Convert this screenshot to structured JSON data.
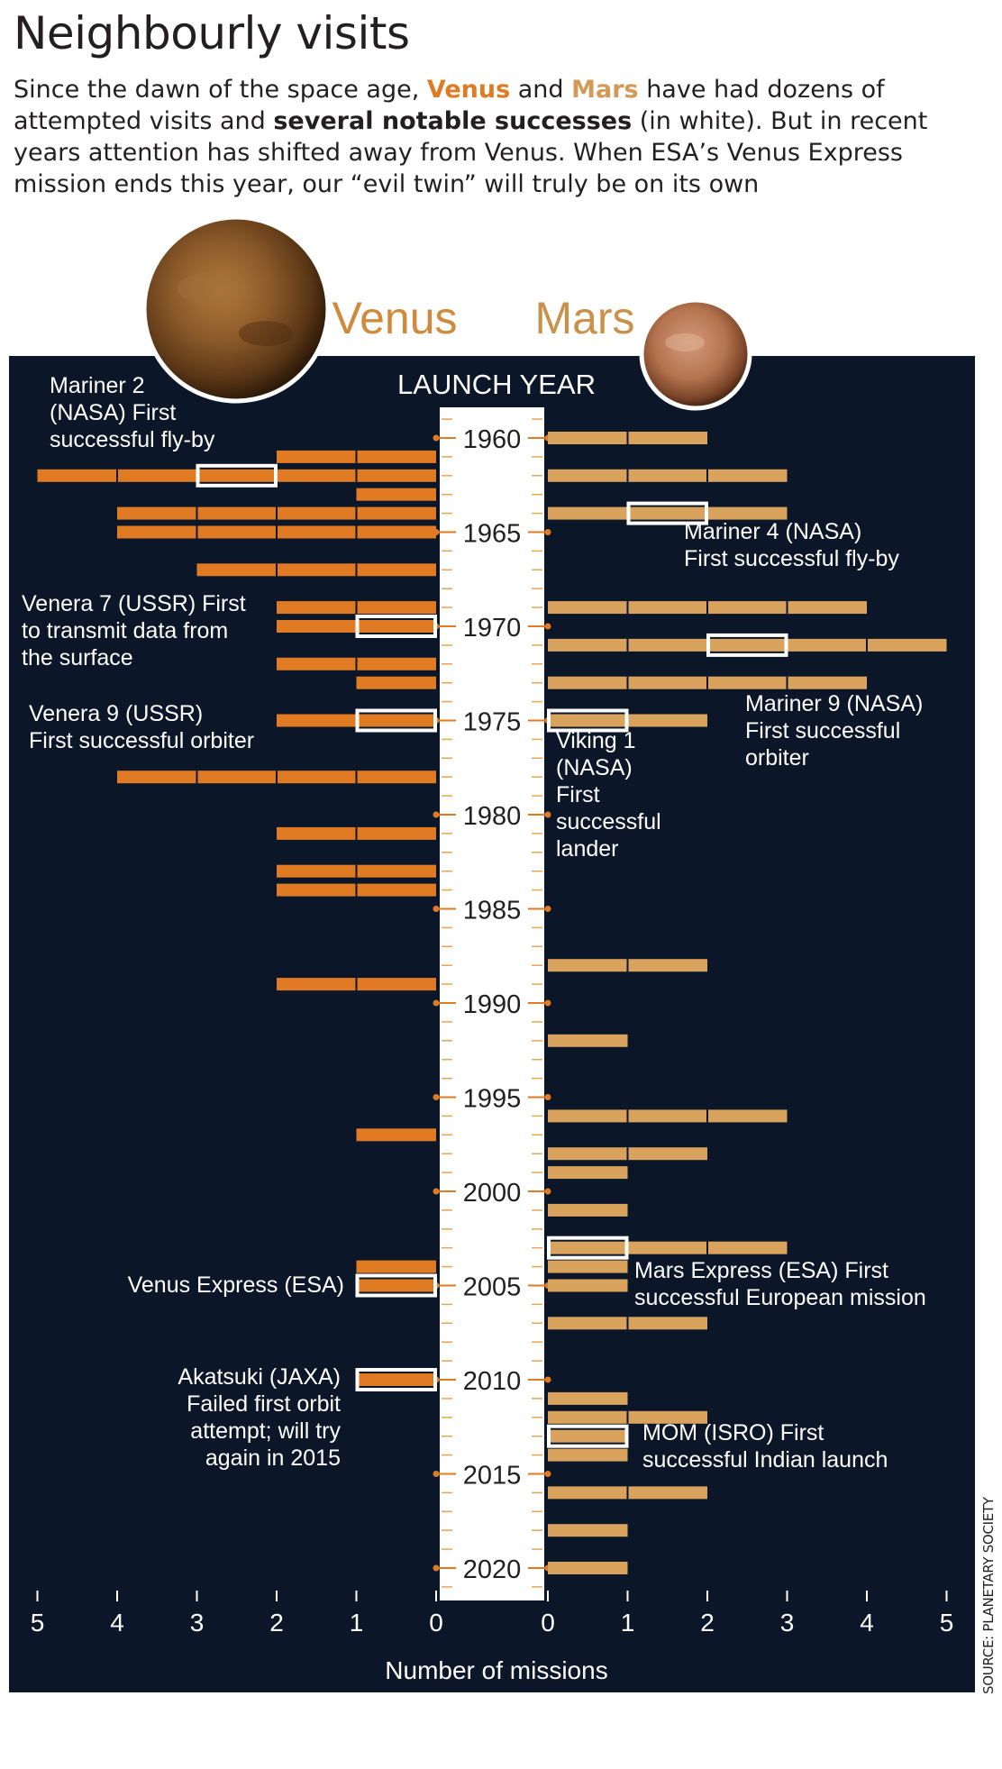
{
  "title": "Neighbourly visits",
  "intro": {
    "p1": "Since the dawn of the space age, ",
    "venus": "Venus",
    "p2": " and ",
    "mars": "Mars",
    "p3": " have had dozens of attempted visits and ",
    "bold": "several notable successes",
    "p4": " (in white). But in recent years attention has shifted away from Venus. When ESA’s Venus Express mission ends this year, our “evil twin” will truly be on its own"
  },
  "source": "SOURCE: PLANETARY SOCIETY",
  "colors": {
    "venus": "#e07b24",
    "mars": "#d9a35e",
    "panel": "#0b1628",
    "highlight": "#ffffff"
  },
  "chart_data": {
    "type": "bar",
    "title": "Neighbourly visits",
    "axis_title": "LAUNCH YEAR",
    "xlabel": "Number of missions",
    "xlim": [
      0,
      5
    ],
    "x_ticks": [
      "5",
      "4",
      "3",
      "2",
      "1",
      "0",
      "0",
      "1",
      "2",
      "3",
      "4",
      "5"
    ],
    "ylim": [
      1958,
      2021
    ],
    "year_ticks": [
      "1960",
      "1965",
      "1970",
      "1975",
      "1980",
      "1985",
      "1990",
      "1995",
      "2000",
      "2005",
      "2010",
      "2015",
      "2020"
    ],
    "series": [
      {
        "name": "Venus",
        "points": [
          {
            "year": 1961,
            "count": 2
          },
          {
            "year": 1962,
            "count": 5,
            "success": 3
          },
          {
            "year": 1963,
            "count": 1
          },
          {
            "year": 1964,
            "count": 4
          },
          {
            "year": 1965,
            "count": 4
          },
          {
            "year": 1967,
            "count": 3
          },
          {
            "year": 1969,
            "count": 2
          },
          {
            "year": 1970,
            "count": 2,
            "success": 1
          },
          {
            "year": 1972,
            "count": 2
          },
          {
            "year": 1973,
            "count": 1
          },
          {
            "year": 1975,
            "count": 2,
            "success": 1
          },
          {
            "year": 1978,
            "count": 4
          },
          {
            "year": 1981,
            "count": 2
          },
          {
            "year": 1983,
            "count": 2
          },
          {
            "year": 1984,
            "count": 2
          },
          {
            "year": 1989,
            "count": 2
          },
          {
            "year": 1997,
            "count": 1
          },
          {
            "year": 2004,
            "count": 1
          },
          {
            "year": 2005,
            "count": 1,
            "success": 1
          },
          {
            "year": 2010,
            "count": 1,
            "success": 1
          }
        ]
      },
      {
        "name": "Mars",
        "points": [
          {
            "year": 1960,
            "count": 2
          },
          {
            "year": 1962,
            "count": 3
          },
          {
            "year": 1964,
            "count": 3,
            "success": 2
          },
          {
            "year": 1969,
            "count": 4
          },
          {
            "year": 1971,
            "count": 5,
            "success": 3
          },
          {
            "year": 1973,
            "count": 4
          },
          {
            "year": 1975,
            "count": 2,
            "success": 1
          },
          {
            "year": 1988,
            "count": 2
          },
          {
            "year": 1992,
            "count": 1
          },
          {
            "year": 1996,
            "count": 3
          },
          {
            "year": 1998,
            "count": 2
          },
          {
            "year": 1999,
            "count": 1
          },
          {
            "year": 2001,
            "count": 1
          },
          {
            "year": 2003,
            "count": 3,
            "success": 1
          },
          {
            "year": 2004,
            "count": 1
          },
          {
            "year": 2005,
            "count": 1
          },
          {
            "year": 2007,
            "count": 2
          },
          {
            "year": 2011,
            "count": 1
          },
          {
            "year": 2012,
            "count": 2
          },
          {
            "year": 2013,
            "count": 1,
            "success": 1
          },
          {
            "year": 2014,
            "count": 1
          },
          {
            "year": 2016,
            "count": 2
          },
          {
            "year": 2018,
            "count": 1
          },
          {
            "year": 2020,
            "count": 1
          }
        ]
      }
    ],
    "annotations": [
      {
        "side": "Venus",
        "year": 1962,
        "lines": [
          "Mariner 2",
          "(NASA) First",
          "successful fly-by"
        ]
      },
      {
        "side": "Venus",
        "year": 1970,
        "lines": [
          "Venera 7 (USSR) First",
          "to transmit data from",
          "the surface"
        ]
      },
      {
        "side": "Venus",
        "year": 1975,
        "lines": [
          "Venera 9 (USSR)",
          "First successful orbiter"
        ]
      },
      {
        "side": "Venus",
        "year": 2005,
        "lines": [
          "Venus Express (ESA)"
        ]
      },
      {
        "side": "Venus",
        "year": 2010,
        "lines": [
          "Akatsuki (JAXA)",
          "Failed first orbit",
          "attempt; will try",
          "again in 2015"
        ]
      },
      {
        "side": "Mars",
        "year": 1964,
        "lines": [
          "Mariner 4 (NASA)",
          "First successful fly-by"
        ]
      },
      {
        "side": "Mars",
        "year": 1971,
        "lines": [
          "Mariner 9 (NASA)",
          "First successful",
          "orbiter"
        ]
      },
      {
        "side": "Mars",
        "year": 1975,
        "lines": [
          "Viking 1",
          "(NASA)",
          "First",
          "successful",
          "lander"
        ]
      },
      {
        "side": "Mars",
        "year": 2003,
        "lines": [
          "Mars Express (ESA) First",
          "successful European mission"
        ]
      },
      {
        "side": "Mars",
        "year": 2013,
        "lines": [
          "MOM (ISRO) First",
          "successful Indian launch"
        ]
      }
    ],
    "planet_labels": {
      "venus": "Venus",
      "mars": "Mars"
    }
  }
}
